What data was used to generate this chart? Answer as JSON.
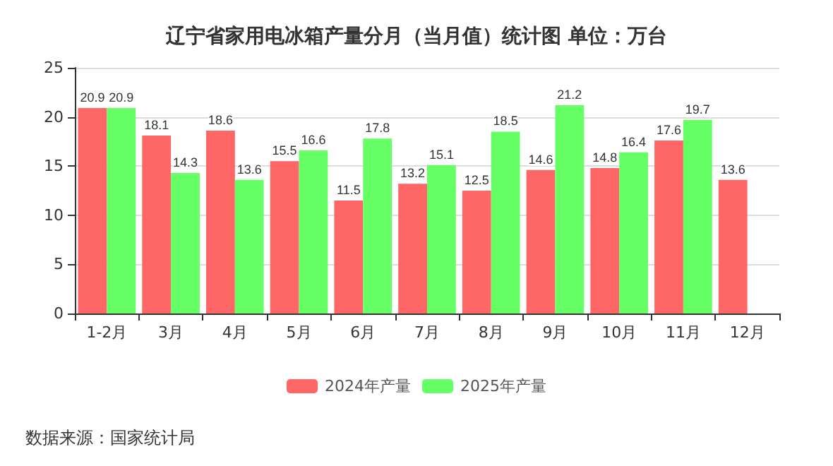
{
  "chart_data": {
    "type": "bar",
    "title": "辽宁省家用电冰箱产量分月（当月值）统计图 单位：万台",
    "categories": [
      "1-2月",
      "3月",
      "4月",
      "5月",
      "6月",
      "7月",
      "8月",
      "9月",
      "10月",
      "11月",
      "12月"
    ],
    "series": [
      {
        "name": "2024年产量",
        "color": "#ff6666",
        "values": [
          20.9,
          18.1,
          18.6,
          15.5,
          11.5,
          13.2,
          12.5,
          14.6,
          14.8,
          17.6,
          13.6
        ]
      },
      {
        "name": "2025年产量",
        "color": "#66ff66",
        "values": [
          20.9,
          14.3,
          13.6,
          16.6,
          17.8,
          15.1,
          18.5,
          21.2,
          16.4,
          19.7,
          null
        ]
      }
    ],
    "ylim": [
      0,
      25
    ],
    "yticks": [
      0,
      5,
      10,
      15,
      20,
      25
    ],
    "grid": "y",
    "legend": "bottom",
    "data_labels": true,
    "annotations": [
      "数据来源：国家统计局"
    ]
  }
}
